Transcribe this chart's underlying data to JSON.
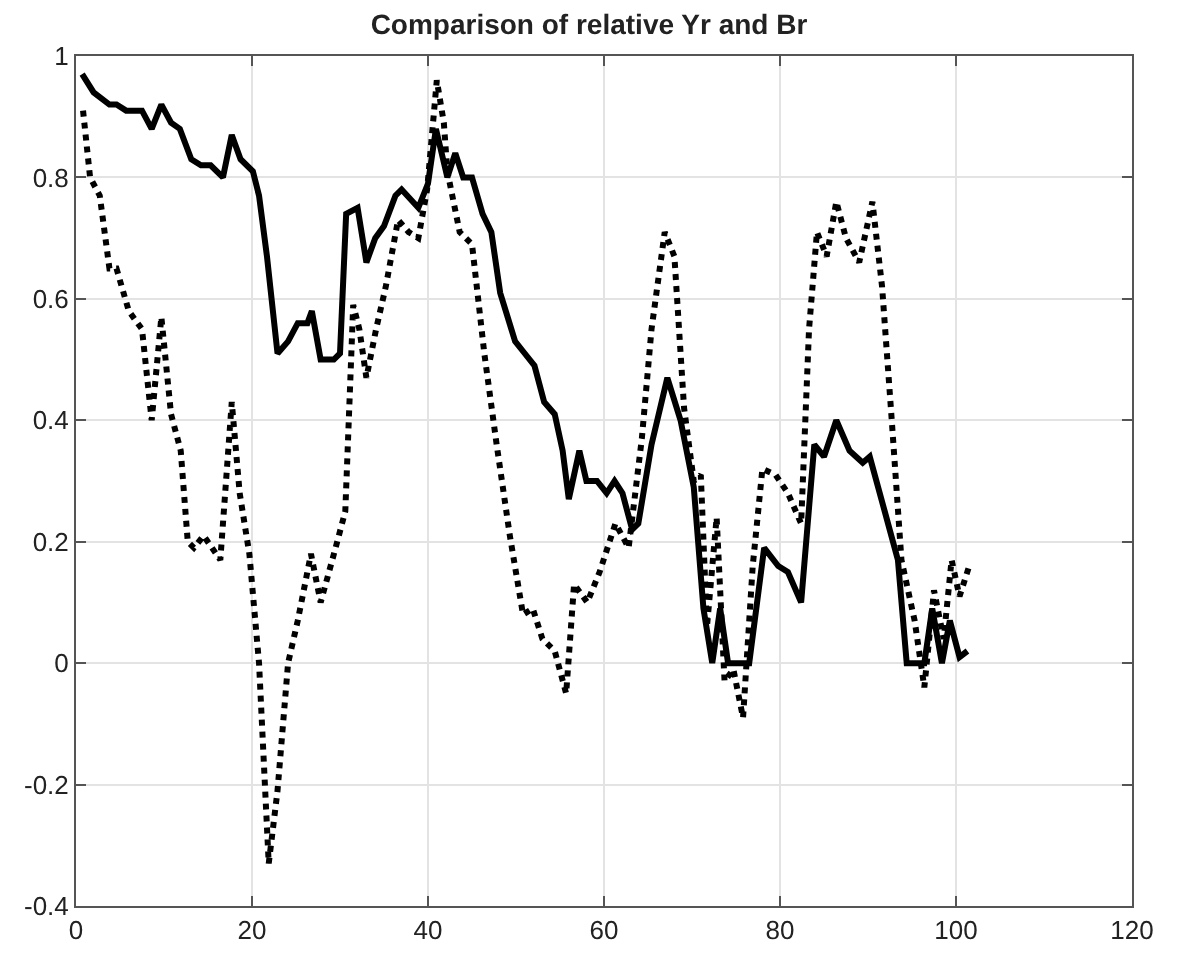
{
  "chart_data": {
    "type": "line",
    "title": "Comparison of relative Yr and Br",
    "xlim": [
      0,
      120
    ],
    "xticks": [
      0,
      20,
      40,
      60,
      80,
      100,
      120
    ],
    "ylim": [
      -0.4,
      1
    ],
    "yticks": [
      -0.4,
      -0.2,
      0,
      0.2,
      0.4,
      0.6,
      0.8,
      1
    ],
    "grid": true,
    "series": [
      {
        "color": "#000000",
        "line_style": "solid",
        "x": [
          0.7,
          2,
          3.8,
          4.6,
          5.7,
          7.5,
          8.6,
          9.7,
          10.8,
          11.8,
          13.1,
          14.2,
          15.3,
          16.7,
          17.7,
          18.7,
          20.1,
          20.8,
          21.7,
          22.9,
          24.1,
          25.2,
          26.3,
          26.8,
          27.8,
          29.3,
          30,
          30.7,
          32,
          33,
          34,
          35,
          36.3,
          37,
          38.9,
          40,
          40.9,
          42.2,
          43.1,
          44,
          45,
          46.2,
          47.2,
          48.2,
          49.9,
          51,
          52.1,
          53.2,
          54.4,
          55.3,
          56,
          57.2,
          58,
          59.2,
          60.3,
          61.2,
          62.1,
          63.2,
          63.9,
          65.4,
          67.2,
          68.7,
          70.2,
          71.3,
          72.3,
          73.2,
          74.1,
          76.5,
          78.2,
          79.8,
          80.9,
          82.4,
          83.9,
          85,
          86.4,
          87.9,
          89.4,
          90.2,
          91.9,
          93.4,
          94.4,
          96.4,
          97.3,
          98.4,
          99.3,
          100.4,
          101.3
        ],
        "values": [
          0.97,
          0.94,
          0.92,
          0.92,
          0.91,
          0.91,
          0.88,
          0.92,
          0.89,
          0.88,
          0.83,
          0.82,
          0.82,
          0.8,
          0.87,
          0.83,
          0.81,
          0.77,
          0.67,
          0.51,
          0.53,
          0.56,
          0.56,
          0.58,
          0.5,
          0.5,
          0.51,
          0.74,
          0.75,
          0.66,
          0.7,
          0.72,
          0.77,
          0.78,
          0.75,
          0.79,
          0.88,
          0.8,
          0.84,
          0.8,
          0.8,
          0.74,
          0.71,
          0.61,
          0.53,
          0.51,
          0.49,
          0.43,
          0.41,
          0.35,
          0.27,
          0.35,
          0.3,
          0.3,
          0.28,
          0.3,
          0.28,
          0.22,
          0.23,
          0.36,
          0.47,
          0.4,
          0.29,
          0.09,
          0.0,
          0.09,
          0.0,
          0.0,
          0.19,
          0.16,
          0.15,
          0.1,
          0.36,
          0.34,
          0.4,
          0.35,
          0.33,
          0.34,
          0.25,
          0.17,
          0.0,
          0.0,
          0.09,
          0.0,
          0.07,
          0.01,
          0.02
        ]
      },
      {
        "color": "#000000",
        "line_style": "dotted",
        "x": [
          0.8,
          1.6,
          2.7,
          3.8,
          4.6,
          6,
          7.5,
          8.6,
          9.7,
          10.8,
          11.9,
          12.7,
          13.4,
          14.5,
          16.4,
          17.7,
          18.6,
          19.7,
          20.8,
          21.9,
          22.9,
          24.1,
          25.2,
          26.7,
          27.8,
          29.5,
          30.6,
          31.5,
          32.2,
          33,
          34.1,
          35.2,
          36.6,
          37.8,
          38.9,
          39.9,
          41,
          41.8,
          42.2,
          43.6,
          45,
          46.4,
          47.8,
          49.3,
          50.8,
          51.9,
          53,
          54.4,
          55.7,
          56.6,
          58.1,
          59.5,
          61.3,
          62.8,
          64.3,
          65.4,
          66.9,
          68,
          69.1,
          70.2,
          71,
          71.7,
          72.8,
          73.7,
          74.7,
          75.8,
          76.9,
          78,
          79.5,
          80.9,
          82.4,
          83.3,
          84.2,
          85.3,
          86.4,
          87.5,
          89,
          90.5,
          91.6,
          92.7,
          93.8,
          95.3,
          96.4,
          97.5,
          98.6,
          99.5,
          100.4,
          101.5
        ],
        "values": [
          0.91,
          0.8,
          0.77,
          0.65,
          0.65,
          0.58,
          0.55,
          0.4,
          0.57,
          0.41,
          0.35,
          0.2,
          0.19,
          0.21,
          0.17,
          0.43,
          0.28,
          0.18,
          0.0,
          -0.33,
          -0.21,
          0.0,
          0.07,
          0.18,
          0.1,
          0.19,
          0.25,
          0.59,
          0.55,
          0.47,
          0.55,
          0.62,
          0.73,
          0.71,
          0.7,
          0.78,
          0.96,
          0.89,
          0.81,
          0.71,
          0.69,
          0.51,
          0.36,
          0.21,
          0.08,
          0.09,
          0.04,
          0.02,
          -0.05,
          0.13,
          0.1,
          0.15,
          0.23,
          0.19,
          0.37,
          0.55,
          0.71,
          0.67,
          0.42,
          0.3,
          0.31,
          0.06,
          0.24,
          -0.03,
          -0.01,
          -0.09,
          0.16,
          0.32,
          0.31,
          0.28,
          0.23,
          0.55,
          0.71,
          0.67,
          0.76,
          0.7,
          0.66,
          0.76,
          0.62,
          0.4,
          0.17,
          0.07,
          -0.04,
          0.12,
          0.04,
          0.17,
          0.11,
          0.16
        ]
      }
    ]
  }
}
